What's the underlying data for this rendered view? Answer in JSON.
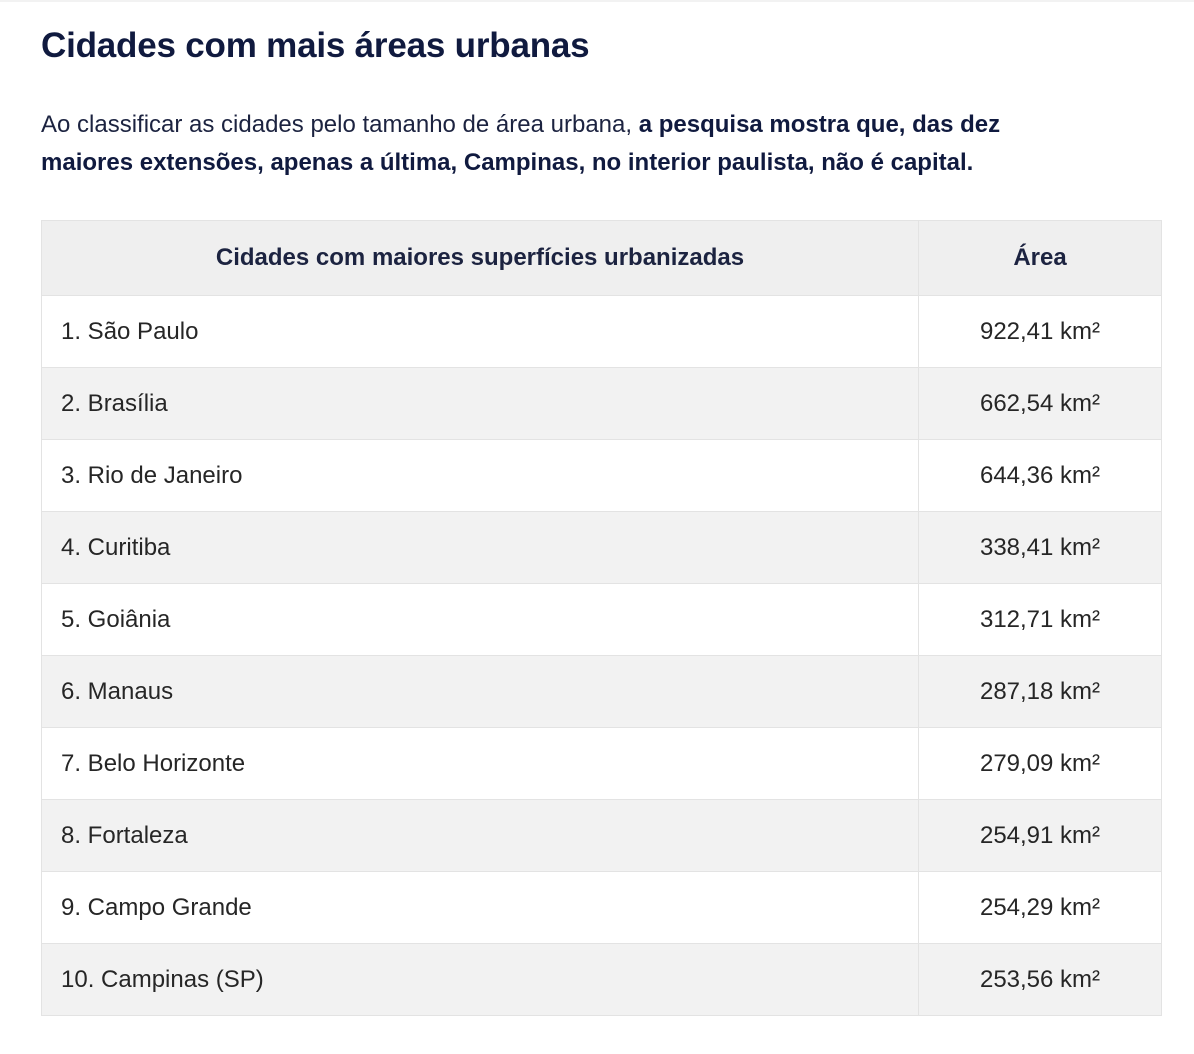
{
  "article": {
    "heading": "Cidades com mais áreas urbanas",
    "intro_lead": "Ao classificar as cidades pelo tamanho de área urbana, ",
    "intro_emphasis": "a pesquisa mostra que, das dez maiores extensões, apenas a última, Campinas, no interior paulista, não é capital."
  },
  "table": {
    "headers": [
      "Cidades com maiores superfícies urbanizadas",
      "Área"
    ],
    "rows": [
      {
        "city": "1. São Paulo",
        "area": "922,41 km²"
      },
      {
        "city": "2. Brasília",
        "area": "662,54 km²"
      },
      {
        "city": "3. Rio de Janeiro",
        "area": "644,36 km²"
      },
      {
        "city": "4. Curitiba",
        "area": "338,41 km²"
      },
      {
        "city": "5. Goiânia",
        "area": "312,71 km²"
      },
      {
        "city": "6. Manaus",
        "area": "287,18 km²"
      },
      {
        "city": "7. Belo Horizonte",
        "area": "279,09 km²"
      },
      {
        "city": "8. Fortaleza",
        "area": "254,91 km²"
      },
      {
        "city": "9. Campo Grande",
        "area": "254,29 km²"
      },
      {
        "city": "10. Campinas (SP)",
        "area": "253,56 km²"
      }
    ]
  }
}
